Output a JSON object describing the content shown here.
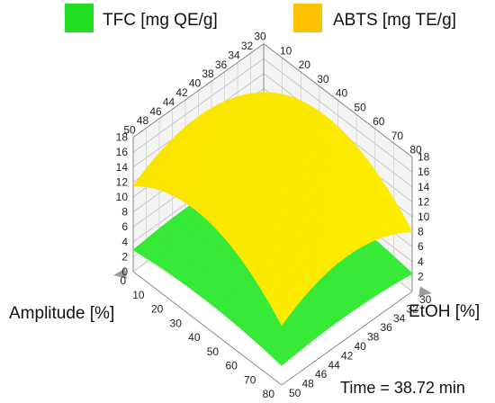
{
  "chart_data": {
    "type": "surface3d",
    "title": "",
    "legend": [
      {
        "label": "TFC [mg QE/g]",
        "color": "#22dd22"
      },
      {
        "label": "ABTS [mg TE/g]",
        "color": "#ffd700"
      }
    ],
    "axes": {
      "amplitude": {
        "label": "Amplitude [%]",
        "range": [
          0,
          80
        ],
        "ticks": [
          "0",
          "10",
          "20",
          "30",
          "40",
          "50",
          "60",
          "70",
          "80"
        ]
      },
      "etoh": {
        "label": "EtOH [%]",
        "range": [
          30,
          50
        ],
        "ticks": [
          "30",
          "32",
          "34",
          "36",
          "38",
          "40",
          "42",
          "44",
          "46",
          "48",
          "50"
        ]
      },
      "back_left": {
        "ticks": [
          "50",
          "48",
          "46",
          "44",
          "42",
          "40",
          "38",
          "36",
          "34",
          "32",
          "30"
        ]
      },
      "back_right": {
        "ticks": [
          "10",
          "20",
          "30",
          "40",
          "50",
          "60",
          "70",
          "80"
        ]
      },
      "z_left": {
        "ticks": [
          "0",
          "2",
          "4",
          "6",
          "8",
          "10",
          "12",
          "14",
          "16",
          "18"
        ]
      },
      "z_right": {
        "ticks": [
          "2",
          "4",
          "6",
          "8",
          "10",
          "12",
          "14",
          "16",
          "18"
        ]
      }
    },
    "z_range": [
      0,
      18
    ],
    "series": [
      {
        "name": "TFC [mg QE/g]",
        "amplitude": [
          0,
          40,
          80
        ],
        "etoh": [
          30,
          40,
          50
        ],
        "z": [
          [
            2.5,
            3.4,
            2.9
          ],
          [
            3.4,
            4.3,
            3.6
          ],
          [
            2.4,
            3.1,
            2.6
          ]
        ]
      },
      {
        "name": "ABTS [mg TE/g]",
        "amplitude": [
          0,
          40,
          80
        ],
        "etoh": [
          30,
          40,
          50
        ],
        "z": [
          [
            11.5,
            14.5,
            11.5
          ],
          [
            14.5,
            17.5,
            14.5
          ],
          [
            8.0,
            11.0,
            8.0
          ]
        ]
      }
    ],
    "grid": true
  },
  "annotation": {
    "time": "Time = 38.72 min"
  }
}
